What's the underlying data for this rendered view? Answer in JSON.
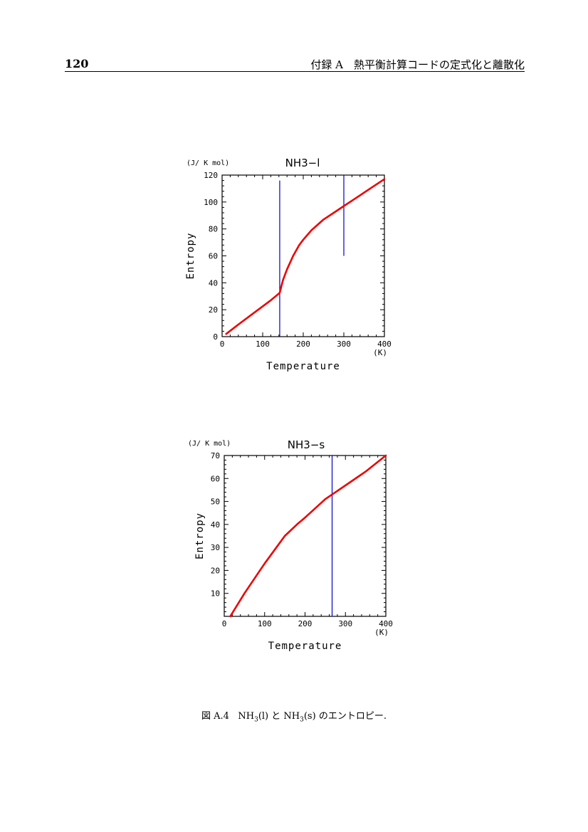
{
  "header": {
    "page_number": "120",
    "running_title": "付録 A　熱平衡計算コードの定式化と離散化"
  },
  "caption": {
    "label": "図 A.4",
    "species_1": "NH",
    "sub_1": "3",
    "phase_1": "(l)",
    "conjunction": " と ",
    "species_2": "NH",
    "sub_2": "3",
    "phase_2": "(s)",
    "text_after": " のエントロピー."
  },
  "colors": {
    "curve": "#ee0000",
    "marker": "#0000cc",
    "axis": "#000000"
  },
  "chart_data": [
    {
      "type": "line",
      "title": "NH3−l",
      "unit_label": "(J/ K mol)",
      "xlabel": "Temperature",
      "ylabel": "Entropy",
      "x_unit": "(K)",
      "xlim": [
        0,
        400
      ],
      "ylim": [
        0,
        120
      ],
      "x_ticks": [
        0,
        100,
        200,
        300,
        400
      ],
      "y_ticks": [
        0,
        20,
        40,
        60,
        80,
        100,
        120
      ],
      "series": [
        {
          "name": "NH3(l) entropy",
          "x": [
            10,
            40,
            80,
            120,
            142,
            150,
            160,
            175,
            190,
            200,
            220,
            250,
            275,
            300,
            325,
            350,
            375,
            400
          ],
          "y": [
            2,
            9,
            18,
            27,
            32.5,
            42,
            50,
            60,
            68,
            72,
            79,
            87,
            92,
            97,
            102,
            107,
            112,
            117
          ]
        }
      ],
      "vertical_lines": [
        {
          "x": 142,
          "y_range": [
            0,
            116
          ]
        },
        {
          "x": 300,
          "y_range": [
            60,
            120
          ]
        }
      ]
    },
    {
      "type": "line",
      "title": "NH3−s",
      "unit_label": "(J/ K mol)",
      "xlabel": "Temperature",
      "ylabel": "Entropy",
      "x_unit": "(K)",
      "xlim": [
        0,
        400
      ],
      "ylim": [
        0,
        70
      ],
      "x_ticks": [
        0,
        100,
        200,
        300,
        400
      ],
      "y_ticks": [
        10,
        20,
        30,
        40,
        50,
        60,
        70
      ],
      "series": [
        {
          "name": "NH3(s) entropy",
          "x": [
            15,
            50,
            100,
            150,
            180,
            200,
            225,
            250,
            275,
            300,
            350,
            400
          ],
          "y": [
            0,
            10,
            23,
            35,
            40,
            43,
            47,
            51,
            54,
            57,
            63,
            70
          ]
        }
      ],
      "vertical_lines": [
        {
          "x": 267,
          "y_range": [
            0,
            70
          ]
        }
      ]
    }
  ]
}
